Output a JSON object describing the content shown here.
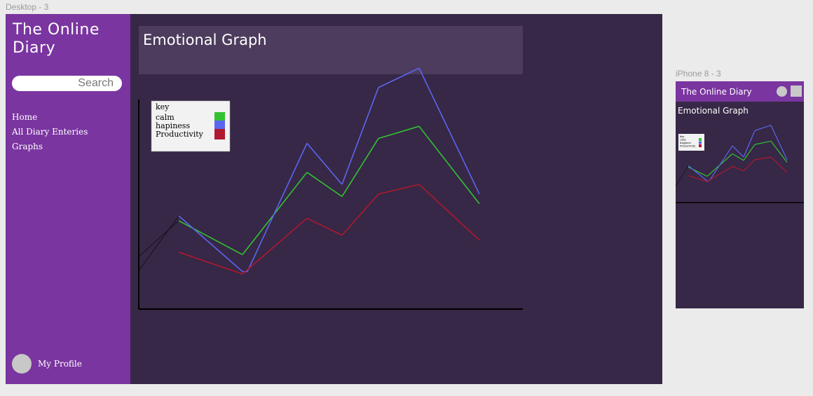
{
  "frames": {
    "desktop_label": "Desktop - 3",
    "phone_label": "iPhone 8 - 3"
  },
  "desktop": {
    "app_title": "The Online Diary",
    "search_placeholder": "Search",
    "nav": [
      "Home",
      "All Diary Enteries",
      "Graphs"
    ],
    "profile_label": "My Profile",
    "page_title": "Emotional Graph"
  },
  "phone": {
    "app_title": "The Online Diary",
    "page_title": "Emotional Graph"
  },
  "colors": {
    "sidebar": "#7a35a0",
    "background": "#362846",
    "calm": "#33c133",
    "hapiness": "#5c65f0",
    "Productivity": "#b0182e"
  },
  "chart_data": {
    "type": "line",
    "title": "",
    "xlabel": "",
    "ylabel": "",
    "legend_title": "key",
    "legend_position": "top-left",
    "x": [
      1,
      2,
      3,
      4,
      5,
      6,
      7,
      8
    ],
    "series": [
      {
        "name": "calm",
        "values": [
          42,
          28,
          null,
          62,
          52,
          76,
          81,
          49
        ]
      },
      {
        "name": "hapiness",
        "values": [
          44,
          21,
          null,
          74,
          57,
          97,
          105,
          53
        ]
      },
      {
        "name": "Productivity",
        "values": [
          29,
          20,
          null,
          43,
          36,
          53,
          57,
          34
        ]
      }
    ],
    "ylim": [
      0,
      110
    ]
  }
}
